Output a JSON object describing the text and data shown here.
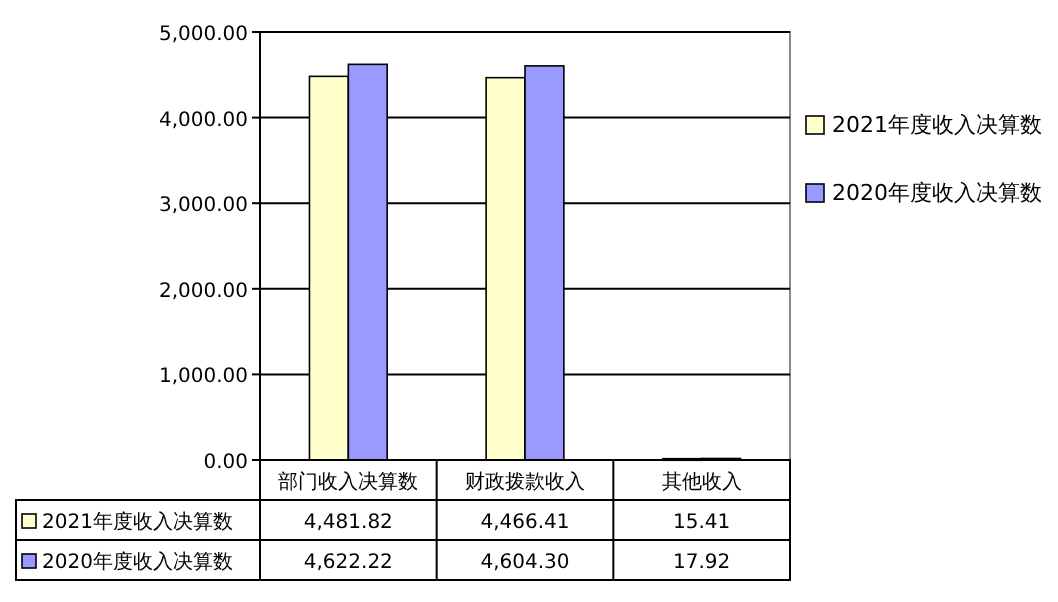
{
  "chart_data": {
    "type": "bar",
    "categories": [
      "部门收入决算数",
      "财政拨款收入",
      "其他收入"
    ],
    "series": [
      {
        "name": "2021年度收入决算数",
        "color": "#ffffcc",
        "values": [
          4481.82,
          4466.41,
          15.41
        ],
        "value_labels": [
          "4,481.82",
          "4,466.41",
          "15.41"
        ]
      },
      {
        "name": "2020年度收入决算数",
        "color": "#9999ff",
        "values": [
          4622.22,
          4604.3,
          17.92
        ],
        "value_labels": [
          "4,622.22",
          "4,604.30",
          "17.92"
        ]
      }
    ],
    "ylim": [
      0,
      5000
    ],
    "yticks": [
      {
        "value": 0,
        "label": "0.00"
      },
      {
        "value": 1000,
        "label": "1,000.00"
      },
      {
        "value": 2000,
        "label": "2,000.00"
      },
      {
        "value": 3000,
        "label": "3,000.00"
      },
      {
        "value": 4000,
        "label": "4,000.00"
      },
      {
        "value": 5000,
        "label": "5,000.00"
      }
    ],
    "grid": "y",
    "legend": "right"
  }
}
